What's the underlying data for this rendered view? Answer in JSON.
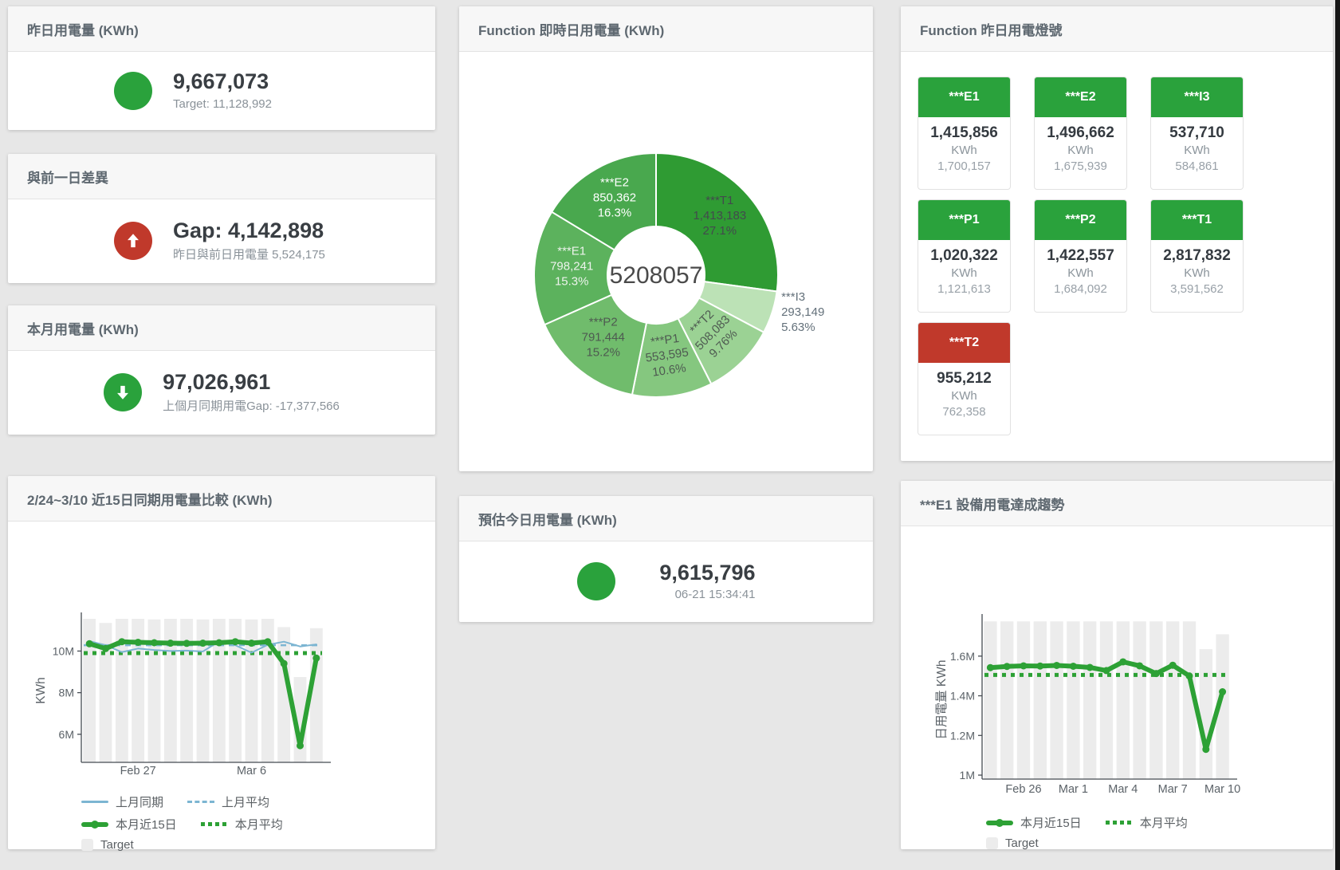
{
  "colors": {
    "green": "#2aa23c",
    "red": "#c0392b",
    "blue": "#7cb5d2",
    "bar_gray": "#ececec",
    "chart_green": "#2da135"
  },
  "cards": {
    "yesterday": {
      "title": "昨日用電量 (KWh)",
      "value": "9,667,073",
      "subtitle": "Target: 11,128,992"
    },
    "gap": {
      "title": "與前一日差異",
      "value": "Gap: 4,142,898",
      "subtitle": "昨日與前日用電量 5,524,175"
    },
    "month": {
      "title": "本月用電量 (KWh)",
      "value": "97,026,961",
      "subtitle": "上個月同期用電Gap: -17,377,566"
    },
    "donut": {
      "title": "Function 即時日用電量 (KWh)"
    },
    "estimate": {
      "title": "預估今日用電量 (KWh)",
      "value": "9,615,796",
      "subtitle": "06-21 15:34:41"
    },
    "lights": {
      "title": "Function 昨日用電燈號"
    },
    "compare": {
      "title": "2/24~3/10 近15日同期用電量比較 (KWh)"
    },
    "trend": {
      "title": "***E1 設備用電達成趨勢"
    }
  },
  "lights": {
    "tiles": [
      {
        "name": "***E1",
        "value": "1,415,856",
        "unit": "KWh",
        "target": "1,700,157",
        "status": "green"
      },
      {
        "name": "***E2",
        "value": "1,496,662",
        "unit": "KWh",
        "target": "1,675,939",
        "status": "green"
      },
      {
        "name": "***I3",
        "value": "537,710",
        "unit": "KWh",
        "target": "584,861",
        "status": "green"
      },
      {
        "name": "***P1",
        "value": "1,020,322",
        "unit": "KWh",
        "target": "1,121,613",
        "status": "green"
      },
      {
        "name": "***P2",
        "value": "1,422,557",
        "unit": "KWh",
        "target": "1,684,092",
        "status": "green"
      },
      {
        "name": "***T1",
        "value": "2,817,832",
        "unit": "KWh",
        "target": "3,591,562",
        "status": "green"
      },
      {
        "name": "***T2",
        "value": "955,212",
        "unit": "KWh",
        "target": "762,358",
        "status": "red"
      }
    ]
  },
  "chart_data": [
    {
      "id": "realtime-donut",
      "type": "pie",
      "title": "Function 即時日用電量 (KWh)",
      "center_total": "5208057",
      "slices": [
        {
          "name": "***T1",
          "value": 1413183,
          "pct": "27.1%",
          "color": "#2f9b33",
          "label_color": "#424a4d",
          "rotate": 0,
          "outside": false
        },
        {
          "name": "***I3",
          "value": 293149,
          "pct": "5.63%",
          "color": "#bce2b6",
          "label_color": "#63707a",
          "rotate": 0,
          "outside": true
        },
        {
          "name": "***T2",
          "value": 508083,
          "pct": "9.76%",
          "color": "#9bd294",
          "label_color": "#4e5a51",
          "rotate": -45,
          "outside": false
        },
        {
          "name": "***P1",
          "value": 553595,
          "pct": "10.6%",
          "color": "#85c77f",
          "label_color": "#4e5a51",
          "rotate": -8,
          "outside": false
        },
        {
          "name": "***P2",
          "value": 791444,
          "pct": "15.2%",
          "color": "#70bc6c",
          "label_color": "#4e5a51",
          "rotate": 0,
          "outside": false
        },
        {
          "name": "***E1",
          "value": 798241,
          "pct": "15.3%",
          "color": "#5cb25d",
          "label_color": "#edf3ec",
          "rotate": 0,
          "outside": false
        },
        {
          "name": "***E2",
          "value": 850362,
          "pct": "16.3%",
          "color": "#49a84e",
          "label_color": "#ffffff",
          "rotate": 0,
          "outside": false
        }
      ]
    },
    {
      "id": "compare-chart",
      "type": "line",
      "title": "2/24~3/10 近15日同期用電量比較 (KWh)",
      "ylabel": "KWh",
      "ylim": [
        4650000,
        11550000
      ],
      "n": 15,
      "grid": false,
      "legend_position": "bottom",
      "yticks": [
        {
          "v": 6000000,
          "label": "6M"
        },
        {
          "v": 8000000,
          "label": "8M"
        },
        {
          "v": 10000000,
          "label": "10M"
        }
      ],
      "xticks": [
        {
          "i": 3,
          "label": "Feb 27"
        },
        {
          "i": 10,
          "label": "Mar 6"
        }
      ],
      "series": [
        {
          "name": "Target",
          "kind": "bar",
          "color": "#ececec",
          "values": [
            11550000,
            11350000,
            11550000,
            11550000,
            11520000,
            11550000,
            11550000,
            11520000,
            11550000,
            11550000,
            11520000,
            11550000,
            11150000,
            8750000,
            11100000
          ]
        },
        {
          "name": "上月平均",
          "kind": "dashed",
          "color": "#7cb5d2",
          "value": 10280000
        },
        {
          "name": "本月平均",
          "kind": "dotted",
          "color": "#2da135",
          "value": 9900000
        },
        {
          "name": "上月同期",
          "kind": "line",
          "color": "#7cb5d2",
          "width": 2,
          "dots": false,
          "values": [
            10480000,
            10280000,
            9950000,
            10120000,
            10050000,
            10000000,
            10020000,
            9980000,
            10460000,
            10280000,
            9920000,
            10300000,
            10450000,
            10220000,
            10320000
          ]
        },
        {
          "name": "本月近15日",
          "kind": "line",
          "color": "#2da135",
          "width": 6,
          "dots": true,
          "values": [
            10350000,
            10120000,
            10450000,
            10420000,
            10400000,
            10380000,
            10370000,
            10380000,
            10400000,
            10450000,
            10380000,
            10450000,
            9400000,
            5450000,
            9660000
          ]
        }
      ],
      "legend": [
        [
          {
            "label": "上月同期",
            "swatch": "line",
            "color": "#7cb5d2"
          },
          {
            "label": "上月平均",
            "swatch": "dash",
            "color": "#7cb5d2"
          }
        ],
        [
          {
            "label": "本月近15日",
            "swatch": "thick",
            "color": "#2da135"
          },
          {
            "label": "本月平均",
            "swatch": "dots",
            "color": "#2da135"
          }
        ],
        [
          {
            "label": "Target",
            "swatch": "square",
            "color": "#ececec"
          }
        ]
      ]
    },
    {
      "id": "e1-trend-chart",
      "type": "line",
      "title": "***E1 設備用電達成趨勢",
      "ylabel": "日用電量 KWh",
      "ylim": [
        980000,
        1780000
      ],
      "n": 15,
      "grid": false,
      "legend_position": "bottom",
      "yticks": [
        {
          "v": 1000000,
          "label": "1M"
        },
        {
          "v": 1200000,
          "label": "1.2M"
        },
        {
          "v": 1400000,
          "label": "1.4M"
        },
        {
          "v": 1600000,
          "label": "1.6M"
        }
      ],
      "xticks": [
        {
          "i": 2,
          "label": "Feb 26"
        },
        {
          "i": 5,
          "label": "Mar 1"
        },
        {
          "i": 8,
          "label": "Mar 4"
        },
        {
          "i": 11,
          "label": "Mar 7"
        },
        {
          "i": 14,
          "label": "Mar 10"
        }
      ],
      "series": [
        {
          "name": "Target",
          "kind": "bar",
          "color": "#ececec",
          "values": [
            1775000,
            1775000,
            1775000,
            1775000,
            1775000,
            1775000,
            1775000,
            1775000,
            1775000,
            1775000,
            1775000,
            1775000,
            1775000,
            1635000,
            1710000
          ]
        },
        {
          "name": "本月平均",
          "kind": "dotted",
          "color": "#2da135",
          "value": 1505000
        },
        {
          "name": "本月近15日",
          "kind": "line",
          "color": "#2da135",
          "width": 6,
          "dots": true,
          "values": [
            1542000,
            1548000,
            1551000,
            1550000,
            1553000,
            1549000,
            1543000,
            1527000,
            1571000,
            1551000,
            1512000,
            1554000,
            1500000,
            1130000,
            1420000
          ]
        }
      ],
      "legend": [
        [
          {
            "label": "本月近15日",
            "swatch": "thick",
            "color": "#2da135"
          },
          {
            "label": "本月平均",
            "swatch": "dots",
            "color": "#2da135"
          }
        ],
        [
          {
            "label": "Target",
            "swatch": "square",
            "color": "#ececec"
          }
        ]
      ]
    }
  ]
}
